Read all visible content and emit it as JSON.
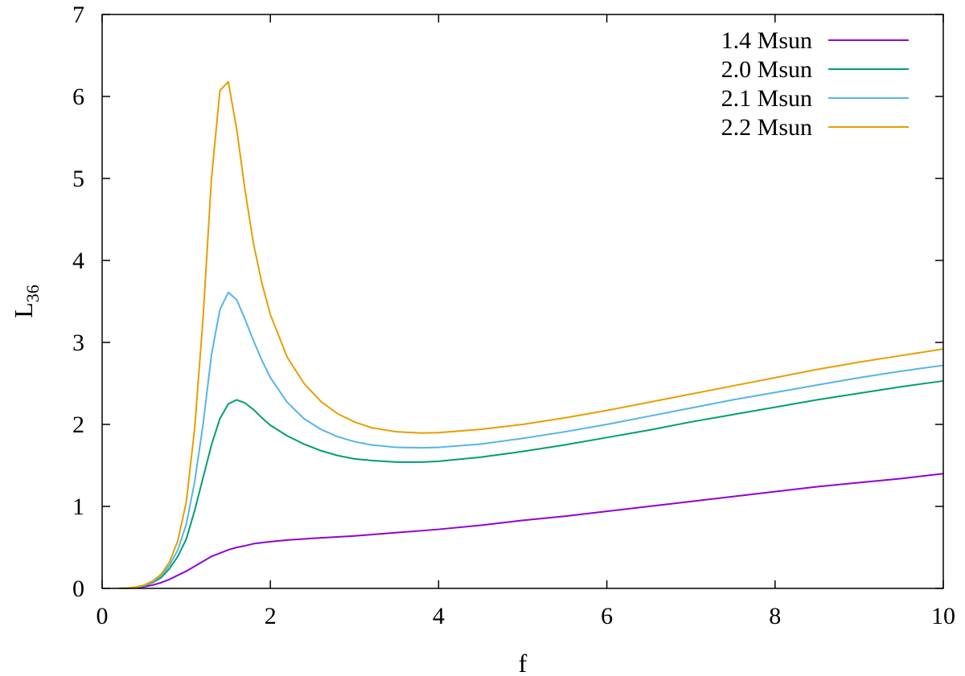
{
  "chart_data": {
    "type": "line",
    "title": "",
    "xlabel": "f",
    "ylabel": {
      "base": "L",
      "sub": "36"
    },
    "xlim": [
      0,
      10
    ],
    "ylim": [
      0,
      7
    ],
    "xticks": [
      0,
      2,
      4,
      6,
      8,
      10
    ],
    "yticks": [
      0,
      1,
      2,
      3,
      4,
      5,
      6,
      7
    ],
    "grid": false,
    "legend_position": "top-right",
    "series": [
      {
        "name": "1.4 Msun",
        "color": "#9400d3",
        "points": [
          [
            0.2,
            0.0
          ],
          [
            0.3,
            0.002
          ],
          [
            0.4,
            0.008
          ],
          [
            0.5,
            0.02
          ],
          [
            0.6,
            0.04
          ],
          [
            0.7,
            0.07
          ],
          [
            0.8,
            0.11
          ],
          [
            0.9,
            0.16
          ],
          [
            1.0,
            0.21
          ],
          [
            1.1,
            0.27
          ],
          [
            1.2,
            0.33
          ],
          [
            1.3,
            0.39
          ],
          [
            1.4,
            0.43
          ],
          [
            1.5,
            0.47
          ],
          [
            1.6,
            0.5
          ],
          [
            1.7,
            0.52
          ],
          [
            1.8,
            0.545
          ],
          [
            2.0,
            0.57
          ],
          [
            2.2,
            0.59
          ],
          [
            2.5,
            0.61
          ],
          [
            3.0,
            0.64
          ],
          [
            3.5,
            0.68
          ],
          [
            4.0,
            0.72
          ],
          [
            4.5,
            0.77
          ],
          [
            5.0,
            0.83
          ],
          [
            5.5,
            0.88
          ],
          [
            6.0,
            0.94
          ],
          [
            6.5,
            1.0
          ],
          [
            7.0,
            1.06
          ],
          [
            7.5,
            1.12
          ],
          [
            8.0,
            1.18
          ],
          [
            8.5,
            1.24
          ],
          [
            9.0,
            1.29
          ],
          [
            9.5,
            1.34
          ],
          [
            10.0,
            1.4
          ]
        ]
      },
      {
        "name": "2.0 Msun",
        "color": "#009e73",
        "points": [
          [
            0.2,
            0.0
          ],
          [
            0.3,
            0.003
          ],
          [
            0.4,
            0.012
          ],
          [
            0.5,
            0.03
          ],
          [
            0.6,
            0.07
          ],
          [
            0.7,
            0.13
          ],
          [
            0.8,
            0.24
          ],
          [
            0.9,
            0.39
          ],
          [
            1.0,
            0.6
          ],
          [
            1.1,
            0.95
          ],
          [
            1.2,
            1.35
          ],
          [
            1.3,
            1.75
          ],
          [
            1.4,
            2.07
          ],
          [
            1.5,
            2.25
          ],
          [
            1.6,
            2.3
          ],
          [
            1.7,
            2.26
          ],
          [
            1.8,
            2.18
          ],
          [
            1.9,
            2.08
          ],
          [
            2.0,
            1.99
          ],
          [
            2.2,
            1.86
          ],
          [
            2.4,
            1.76
          ],
          [
            2.6,
            1.68
          ],
          [
            2.8,
            1.62
          ],
          [
            3.0,
            1.58
          ],
          [
            3.2,
            1.56
          ],
          [
            3.5,
            1.54
          ],
          [
            3.8,
            1.54
          ],
          [
            4.0,
            1.55
          ],
          [
            4.5,
            1.6
          ],
          [
            5.0,
            1.67
          ],
          [
            5.5,
            1.75
          ],
          [
            6.0,
            1.84
          ],
          [
            6.5,
            1.93
          ],
          [
            7.0,
            2.03
          ],
          [
            7.5,
            2.12
          ],
          [
            8.0,
            2.21
          ],
          [
            8.5,
            2.3
          ],
          [
            9.0,
            2.38
          ],
          [
            9.5,
            2.46
          ],
          [
            10.0,
            2.53
          ]
        ]
      },
      {
        "name": "2.1 Msun",
        "color": "#56b4e9",
        "points": [
          [
            0.2,
            0.0
          ],
          [
            0.3,
            0.004
          ],
          [
            0.4,
            0.014
          ],
          [
            0.5,
            0.035
          ],
          [
            0.6,
            0.08
          ],
          [
            0.7,
            0.15
          ],
          [
            0.8,
            0.28
          ],
          [
            0.9,
            0.47
          ],
          [
            1.0,
            0.78
          ],
          [
            1.1,
            1.3
          ],
          [
            1.2,
            2.0
          ],
          [
            1.3,
            2.85
          ],
          [
            1.4,
            3.4
          ],
          [
            1.5,
            3.61
          ],
          [
            1.6,
            3.52
          ],
          [
            1.7,
            3.28
          ],
          [
            1.8,
            3.02
          ],
          [
            1.9,
            2.78
          ],
          [
            2.0,
            2.57
          ],
          [
            2.2,
            2.27
          ],
          [
            2.4,
            2.07
          ],
          [
            2.6,
            1.94
          ],
          [
            2.8,
            1.85
          ],
          [
            3.0,
            1.79
          ],
          [
            3.2,
            1.75
          ],
          [
            3.5,
            1.72
          ],
          [
            3.8,
            1.715
          ],
          [
            4.0,
            1.72
          ],
          [
            4.5,
            1.76
          ],
          [
            5.0,
            1.83
          ],
          [
            5.5,
            1.91
          ],
          [
            6.0,
            2.0
          ],
          [
            6.5,
            2.1
          ],
          [
            7.0,
            2.2
          ],
          [
            7.5,
            2.3
          ],
          [
            8.0,
            2.39
          ],
          [
            8.5,
            2.48
          ],
          [
            9.0,
            2.57
          ],
          [
            9.5,
            2.65
          ],
          [
            10.0,
            2.72
          ]
        ]
      },
      {
        "name": "2.2 Msun",
        "color": "#e69f00",
        "points": [
          [
            0.2,
            0.0
          ],
          [
            0.3,
            0.005
          ],
          [
            0.4,
            0.017
          ],
          [
            0.5,
            0.04
          ],
          [
            0.6,
            0.09
          ],
          [
            0.7,
            0.17
          ],
          [
            0.8,
            0.32
          ],
          [
            0.9,
            0.58
          ],
          [
            1.0,
            1.05
          ],
          [
            1.1,
            1.95
          ],
          [
            1.2,
            3.3
          ],
          [
            1.3,
            5.0
          ],
          [
            1.4,
            6.07
          ],
          [
            1.5,
            6.18
          ],
          [
            1.6,
            5.6
          ],
          [
            1.7,
            4.85
          ],
          [
            1.8,
            4.2
          ],
          [
            1.9,
            3.72
          ],
          [
            2.0,
            3.34
          ],
          [
            2.2,
            2.82
          ],
          [
            2.4,
            2.5
          ],
          [
            2.6,
            2.28
          ],
          [
            2.8,
            2.13
          ],
          [
            3.0,
            2.03
          ],
          [
            3.2,
            1.96
          ],
          [
            3.5,
            1.91
          ],
          [
            3.8,
            1.895
          ],
          [
            4.0,
            1.9
          ],
          [
            4.5,
            1.94
          ],
          [
            5.0,
            2.0
          ],
          [
            5.5,
            2.08
          ],
          [
            6.0,
            2.17
          ],
          [
            6.5,
            2.27
          ],
          [
            7.0,
            2.37
          ],
          [
            7.5,
            2.47
          ],
          [
            8.0,
            2.57
          ],
          [
            8.5,
            2.67
          ],
          [
            9.0,
            2.76
          ],
          [
            9.5,
            2.84
          ],
          [
            10.0,
            2.92
          ]
        ]
      }
    ]
  }
}
